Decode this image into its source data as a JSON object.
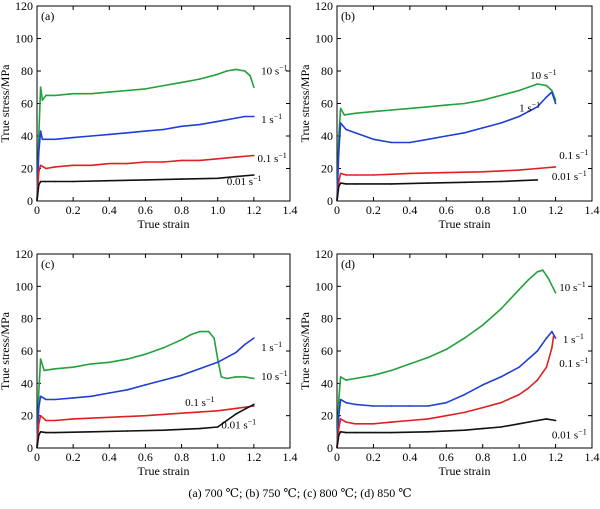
{
  "caption": "(a) 700 ℃; (b) 750 ℃; (c) 800 ℃; (d) 850 ℃",
  "chart_data": [
    {
      "type": "line",
      "panel_label": "(a)",
      "xlabel": "True strain",
      "ylabel": "True stress/MPa",
      "xlim": [
        0,
        1.4
      ],
      "ylim": [
        0,
        120
      ],
      "xticks": [
        "0",
        "0.2",
        "0.4",
        "0.6",
        "0.8",
        "1.0",
        "1.2",
        "1.4"
      ],
      "yticks": [
        "0",
        "20",
        "40",
        "60",
        "80",
        "100",
        "120"
      ],
      "series": [
        {
          "name": "10 s⁻¹",
          "color": "#22a13c",
          "x": [
            0,
            0.01,
            0.02,
            0.03,
            0.05,
            0.1,
            0.2,
            0.3,
            0.4,
            0.5,
            0.6,
            0.7,
            0.8,
            0.9,
            1.0,
            1.05,
            1.1,
            1.15,
            1.18,
            1.2
          ],
          "y": [
            0,
            40,
            70,
            62,
            65,
            65,
            66,
            66,
            67,
            68,
            69,
            71,
            73,
            75,
            78,
            80,
            81,
            80,
            77,
            70
          ]
        },
        {
          "name": "1 s⁻¹",
          "color": "#1f3fd6",
          "x": [
            0,
            0.01,
            0.02,
            0.03,
            0.05,
            0.1,
            0.2,
            0.3,
            0.4,
            0.5,
            0.6,
            0.7,
            0.8,
            0.9,
            1.0,
            1.1,
            1.15,
            1.2
          ],
          "y": [
            0,
            30,
            43,
            38,
            38,
            38,
            39,
            40,
            41,
            42,
            43,
            44,
            46,
            47,
            49,
            51,
            52,
            52
          ]
        },
        {
          "name": "0.1 s⁻¹",
          "color": "#e02020",
          "x": [
            0,
            0.01,
            0.02,
            0.05,
            0.1,
            0.2,
            0.3,
            0.4,
            0.5,
            0.6,
            0.7,
            0.8,
            0.9,
            1.0,
            1.1,
            1.2
          ],
          "y": [
            0,
            18,
            22,
            20,
            21,
            22,
            22,
            23,
            23,
            24,
            24,
            25,
            25,
            26,
            27,
            28
          ]
        },
        {
          "name": "0.01 s⁻¹",
          "color": "#111111",
          "x": [
            0,
            0.01,
            0.02,
            0.05,
            0.1,
            0.2,
            0.4,
            0.6,
            0.8,
            1.0,
            1.1,
            1.2
          ],
          "y": [
            0,
            10,
            12,
            12,
            12,
            12,
            12.5,
            13,
            13.5,
            14,
            15,
            16
          ]
        }
      ],
      "labels": [
        {
          "text": "10 s",
          "sup": "−1",
          "x": 1.24,
          "y": 78
        },
        {
          "text": "1 s",
          "sup": "−1",
          "x": 1.24,
          "y": 48
        },
        {
          "text": "0.1 s",
          "sup": "−1",
          "x": 1.22,
          "y": 24
        },
        {
          "text": "0.01 s",
          "sup": "−1",
          "x": 1.05,
          "y": 10
        }
      ]
    },
    {
      "type": "line",
      "panel_label": "(b)",
      "xlabel": "True strain",
      "ylabel": "True stress/MPa",
      "xlim": [
        0,
        1.4
      ],
      "ylim": [
        0,
        120
      ],
      "xticks": [
        "0",
        "0.2",
        "0.4",
        "0.6",
        "0.8",
        "1.0",
        "1.2",
        "1.4"
      ],
      "yticks": [
        "0",
        "20",
        "40",
        "60",
        "80",
        "100",
        "120"
      ],
      "series": [
        {
          "name": "10 s⁻¹",
          "color": "#22a13c",
          "x": [
            0,
            0.01,
            0.02,
            0.04,
            0.1,
            0.2,
            0.3,
            0.4,
            0.5,
            0.6,
            0.7,
            0.8,
            0.9,
            1.0,
            1.05,
            1.1,
            1.15,
            1.18,
            1.2
          ],
          "y": [
            0,
            40,
            57,
            53,
            54,
            55,
            56,
            57,
            58,
            59,
            60,
            62,
            65,
            68,
            70,
            72,
            71,
            68,
            62
          ]
        },
        {
          "name": "1 s⁻¹",
          "color": "#1f3fd6",
          "x": [
            0,
            0.01,
            0.02,
            0.05,
            0.1,
            0.2,
            0.3,
            0.4,
            0.5,
            0.6,
            0.7,
            0.8,
            0.9,
            1.0,
            1.1,
            1.15,
            1.18,
            1.2
          ],
          "y": [
            0,
            30,
            48,
            44,
            42,
            38,
            36,
            36,
            38,
            40,
            42,
            45,
            48,
            52,
            58,
            64,
            67,
            60
          ]
        },
        {
          "name": "0.1 s⁻¹",
          "color": "#e02020",
          "x": [
            0,
            0.01,
            0.02,
            0.05,
            0.1,
            0.2,
            0.4,
            0.6,
            0.8,
            1.0,
            1.1,
            1.2
          ],
          "y": [
            0,
            12,
            17,
            16,
            16,
            16,
            17,
            17.5,
            18,
            19,
            20,
            21
          ]
        },
        {
          "name": "0.01 s⁻¹",
          "color": "#111111",
          "x": [
            0,
            0.01,
            0.02,
            0.05,
            0.1,
            0.3,
            0.5,
            0.7,
            0.9,
            1.0,
            1.1
          ],
          "y": [
            0,
            9,
            11,
            10.5,
            10.5,
            10.5,
            11,
            11.5,
            12,
            12.5,
            13
          ]
        }
      ],
      "labels": [
        {
          "text": "10 s",
          "sup": "−1",
          "x": 1.06,
          "y": 75
        },
        {
          "text": "1 s",
          "sup": "−1",
          "x": 1.0,
          "y": 55
        },
        {
          "text": "0.1 s",
          "sup": "−1",
          "x": 1.22,
          "y": 26
        },
        {
          "text": "0.01 s",
          "sup": "−1",
          "x": 1.18,
          "y": 13
        }
      ]
    },
    {
      "type": "line",
      "panel_label": "(c)",
      "xlabel": "True strain",
      "ylabel": "True stress/MPa",
      "xlim": [
        0,
        1.4
      ],
      "ylim": [
        0,
        120
      ],
      "xticks": [
        "0",
        "0.2",
        "0.4",
        "0.6",
        "0.8",
        "1.0",
        "1.2",
        "1.4"
      ],
      "yticks": [
        "0",
        "20",
        "40",
        "60",
        "80",
        "100",
        "120"
      ],
      "series": [
        {
          "name": "10 s⁻¹",
          "color": "#22a13c",
          "x": [
            0,
            0.01,
            0.02,
            0.04,
            0.1,
            0.2,
            0.3,
            0.4,
            0.5,
            0.6,
            0.7,
            0.8,
            0.85,
            0.9,
            0.95,
            0.98,
            1.0,
            1.02,
            1.05,
            1.1,
            1.15,
            1.2
          ],
          "y": [
            0,
            35,
            55,
            48,
            49,
            50,
            52,
            53,
            55,
            58,
            62,
            67,
            70,
            72,
            72,
            68,
            55,
            44,
            43,
            44,
            44,
            43
          ]
        },
        {
          "name": "1 s⁻¹",
          "color": "#1f3fd6",
          "x": [
            0,
            0.01,
            0.02,
            0.05,
            0.1,
            0.2,
            0.3,
            0.4,
            0.5,
            0.6,
            0.7,
            0.8,
            0.9,
            1.0,
            1.1,
            1.15,
            1.2
          ],
          "y": [
            0,
            25,
            32,
            30,
            30,
            31,
            32,
            34,
            36,
            39,
            42,
            45,
            49,
            53,
            59,
            64,
            68
          ]
        },
        {
          "name": "0.1 s⁻¹",
          "color": "#e02020",
          "x": [
            0,
            0.01,
            0.02,
            0.05,
            0.1,
            0.2,
            0.4,
            0.6,
            0.8,
            1.0,
            1.1,
            1.2
          ],
          "y": [
            0,
            15,
            20,
            17,
            17,
            18,
            19,
            20,
            21.5,
            23,
            24.5,
            26
          ]
        },
        {
          "name": "0.01 s⁻¹",
          "color": "#111111",
          "x": [
            0,
            0.01,
            0.02,
            0.05,
            0.1,
            0.3,
            0.5,
            0.7,
            0.9,
            1.0,
            1.05,
            1.1,
            1.15,
            1.2
          ],
          "y": [
            0,
            8,
            10,
            9.5,
            9.5,
            10,
            10.5,
            11,
            12,
            13,
            17,
            21,
            24,
            27
          ]
        }
      ],
      "labels": [
        {
          "text": "1 s",
          "sup": "−1",
          "x": 1.24,
          "y": 60
        },
        {
          "text": "10 s",
          "sup": "−1",
          "x": 1.24,
          "y": 42
        },
        {
          "text": "0.1 s",
          "sup": "−1",
          "x": 0.82,
          "y": 26
        },
        {
          "text": "0.01 s",
          "sup": "−1",
          "x": 1.02,
          "y": 12
        }
      ]
    },
    {
      "type": "line",
      "panel_label": "(d)",
      "xlabel": "True strain",
      "ylabel": "True stress/MPa",
      "xlim": [
        0,
        1.4
      ],
      "ylim": [
        0,
        120
      ],
      "xticks": [
        "0",
        "0.2",
        "0.4",
        "0.6",
        "0.8",
        "1.0",
        "1.2",
        "1.4"
      ],
      "yticks": [
        "0",
        "20",
        "40",
        "60",
        "80",
        "100",
        "120"
      ],
      "series": [
        {
          "name": "10 s⁻¹",
          "color": "#22a13c",
          "x": [
            0,
            0.01,
            0.02,
            0.05,
            0.1,
            0.2,
            0.3,
            0.4,
            0.5,
            0.6,
            0.7,
            0.8,
            0.9,
            1.0,
            1.05,
            1.1,
            1.13,
            1.16,
            1.2
          ],
          "y": [
            0,
            30,
            44,
            42,
            43,
            45,
            48,
            52,
            56,
            61,
            68,
            76,
            86,
            98,
            104,
            109,
            110,
            105,
            96
          ]
        },
        {
          "name": "1 s⁻¹",
          "color": "#1f3fd6",
          "x": [
            0,
            0.01,
            0.02,
            0.05,
            0.1,
            0.2,
            0.3,
            0.4,
            0.5,
            0.6,
            0.7,
            0.8,
            0.9,
            1.0,
            1.1,
            1.15,
            1.18,
            1.2
          ],
          "y": [
            0,
            20,
            30,
            28,
            27,
            26,
            26,
            26,
            26,
            28,
            33,
            39,
            44,
            50,
            60,
            68,
            72,
            68
          ]
        },
        {
          "name": "0.1 s⁻¹",
          "color": "#e02020",
          "x": [
            0,
            0.01,
            0.02,
            0.05,
            0.1,
            0.2,
            0.3,
            0.4,
            0.5,
            0.6,
            0.7,
            0.8,
            0.9,
            1.0,
            1.05,
            1.1,
            1.15,
            1.18,
            1.19
          ],
          "y": [
            0,
            12,
            18,
            16,
            15,
            15,
            16,
            17,
            18,
            20,
            22,
            25,
            28,
            33,
            37,
            42,
            50,
            62,
            70
          ]
        },
        {
          "name": "0.01 s⁻¹",
          "color": "#111111",
          "x": [
            0,
            0.01,
            0.02,
            0.05,
            0.1,
            0.3,
            0.5,
            0.7,
            0.8,
            0.9,
            1.0,
            1.05,
            1.1,
            1.15,
            1.2
          ],
          "y": [
            0,
            8,
            10,
            9.5,
            9.5,
            9.5,
            10,
            11,
            12,
            13,
            15,
            16,
            17,
            18,
            17
          ]
        }
      ],
      "labels": [
        {
          "text": "10 s",
          "sup": "−1",
          "x": 1.22,
          "y": 97
        },
        {
          "text": "1 s",
          "sup": "−1",
          "x": 1.24,
          "y": 65
        },
        {
          "text": "0.1 s",
          "sup": "−1",
          "x": 1.22,
          "y": 50
        },
        {
          "text": "0.01 s",
          "sup": "−1",
          "x": 1.18,
          "y": 6
        }
      ]
    }
  ]
}
